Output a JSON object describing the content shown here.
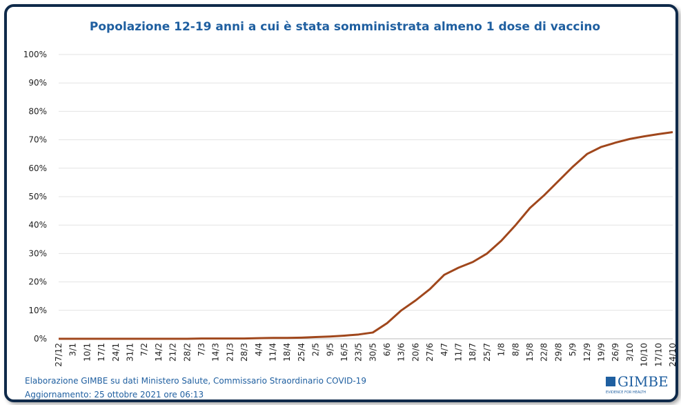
{
  "chart_data": {
    "type": "line",
    "title": "Popolazione 12-19 anni a cui è stata somministrata almeno 1 dose di vaccino",
    "categories": [
      "27/12",
      "3/1",
      "10/1",
      "17/1",
      "24/1",
      "31/1",
      "7/2",
      "14/2",
      "21/2",
      "28/2",
      "7/3",
      "14/3",
      "21/3",
      "28/3",
      "4/4",
      "11/4",
      "18/4",
      "25/4",
      "2/5",
      "9/5",
      "16/5",
      "23/5",
      "30/5",
      "6/6",
      "13/6",
      "20/6",
      "27/6",
      "4/7",
      "11/7",
      "18/7",
      "25/7",
      "1/8",
      "8/8",
      "15/8",
      "22/8",
      "29/8",
      "5/9",
      "12/9",
      "19/9",
      "26/9",
      "3/10",
      "10/10",
      "17/10",
      "24/10"
    ],
    "series": [
      {
        "name": "Popolazione 12-19 anni",
        "color": "#a0471c",
        "values": [
          0,
          0,
          0,
          0,
          0,
          0,
          0,
          0,
          0,
          0,
          0.1,
          0.1,
          0.1,
          0.1,
          0.2,
          0.3,
          0.3,
          0.4,
          0.6,
          0.8,
          1.1,
          1.5,
          2.2,
          5.5,
          10,
          13.5,
          17.5,
          22.5,
          25,
          27,
          30,
          34.5,
          40,
          46,
          50.5,
          55.5,
          60.5,
          65,
          67.5,
          69,
          70.3,
          71.2,
          72,
          72.7
        ]
      }
    ],
    "ylim": [
      0,
      100
    ],
    "yticks": [
      {
        "value": 0,
        "label": "0%"
      },
      {
        "value": 10,
        "label": "10%"
      },
      {
        "value": 20,
        "label": "20%"
      },
      {
        "value": 30,
        "label": "30%"
      },
      {
        "value": 40,
        "label": "40%"
      },
      {
        "value": 50,
        "label": "50%"
      },
      {
        "value": 60,
        "label": "60%"
      },
      {
        "value": 70,
        "label": "70%"
      },
      {
        "value": 80,
        "label": "80%"
      },
      {
        "value": 90,
        "label": "90%"
      },
      {
        "value": 100,
        "label": "100%"
      }
    ],
    "grid": true
  },
  "footer": {
    "source": "Elaborazione GIMBE su dati Ministero Salute, Commissario Straordinario COVID-19",
    "update": "Aggiornamento: 25 ottobre 2021 ore 06:13",
    "logo": "GIMBE",
    "logo_tagline": "EVIDENCE FOR HEALTH"
  }
}
